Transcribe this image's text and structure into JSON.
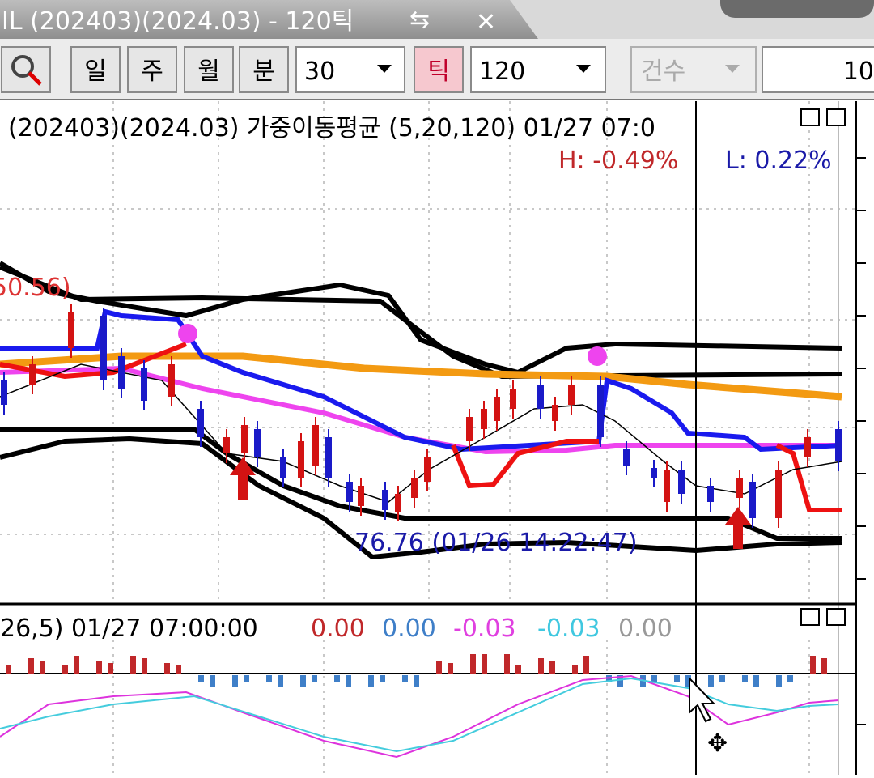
{
  "tab": {
    "title": "IL (202403)(2024.03) - 120틱"
  },
  "toolbar": {
    "buttons": [
      "일",
      "주",
      "월",
      "분"
    ],
    "period": "30",
    "tick_button": "틱",
    "tick_count": "120",
    "count_label": "건수",
    "count_value": "10"
  },
  "main_chart": {
    "header": "(202403)(2024.03) 가중이동평균  (5,20,120) 01/27 07:0",
    "high": "H: -0.49%",
    "low": "L: 0.22%",
    "high_marker": "50.56)",
    "low_marker": "76.76 (01/26 14:22:47)"
  },
  "sub_chart": {
    "header": "26,5) 01/27 07:00:00",
    "values": [
      "0.00",
      "0.00",
      "-0.03",
      "-0.03",
      "0.00"
    ]
  }
}
